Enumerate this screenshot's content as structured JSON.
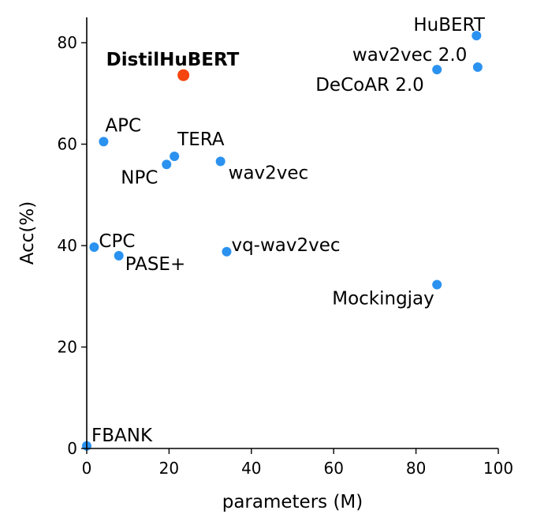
{
  "chart_data": {
    "type": "scatter",
    "xlabel": "parameters (M)",
    "ylabel": "Acc(%)",
    "xlim": [
      0,
      100
    ],
    "ylim": [
      0,
      85
    ],
    "xticks": [
      "0",
      "20",
      "40",
      "60",
      "80",
      "100"
    ],
    "yticks": [
      "0",
      "20",
      "40",
      "60",
      "80"
    ],
    "grid": false,
    "colors": {
      "default": "#2b92f0",
      "highlight": "#f5460f"
    },
    "points": [
      {
        "label": "FBANK",
        "x": 0,
        "y": 0.5,
        "highlight": false
      },
      {
        "label": "CPC",
        "x": 1.8,
        "y": 39.7,
        "highlight": false
      },
      {
        "label": "APC",
        "x": 4.1,
        "y": 60.5,
        "highlight": false
      },
      {
        "label": "PASE+",
        "x": 7.8,
        "y": 38.0,
        "highlight": false
      },
      {
        "label": "NPC",
        "x": 19.4,
        "y": 56.0,
        "highlight": false
      },
      {
        "label": "TERA",
        "x": 21.3,
        "y": 57.6,
        "highlight": false
      },
      {
        "label": "DistilHuBERT",
        "x": 23.5,
        "y": 73.6,
        "highlight": true
      },
      {
        "label": "wav2vec",
        "x": 32.5,
        "y": 56.6,
        "highlight": false
      },
      {
        "label": "vq-wav2vec",
        "x": 34.0,
        "y": 38.8,
        "highlight": false
      },
      {
        "label": "Mockingjay",
        "x": 85.1,
        "y": 32.3,
        "highlight": false
      },
      {
        "label": "DeCoAR 2.0",
        "x": 85.1,
        "y": 74.7,
        "highlight": false
      },
      {
        "label": "wav2vec 2.0",
        "x": 95.0,
        "y": 75.2,
        "highlight": false
      },
      {
        "label": "HuBERT",
        "x": 94.7,
        "y": 81.4,
        "highlight": false
      }
    ]
  }
}
